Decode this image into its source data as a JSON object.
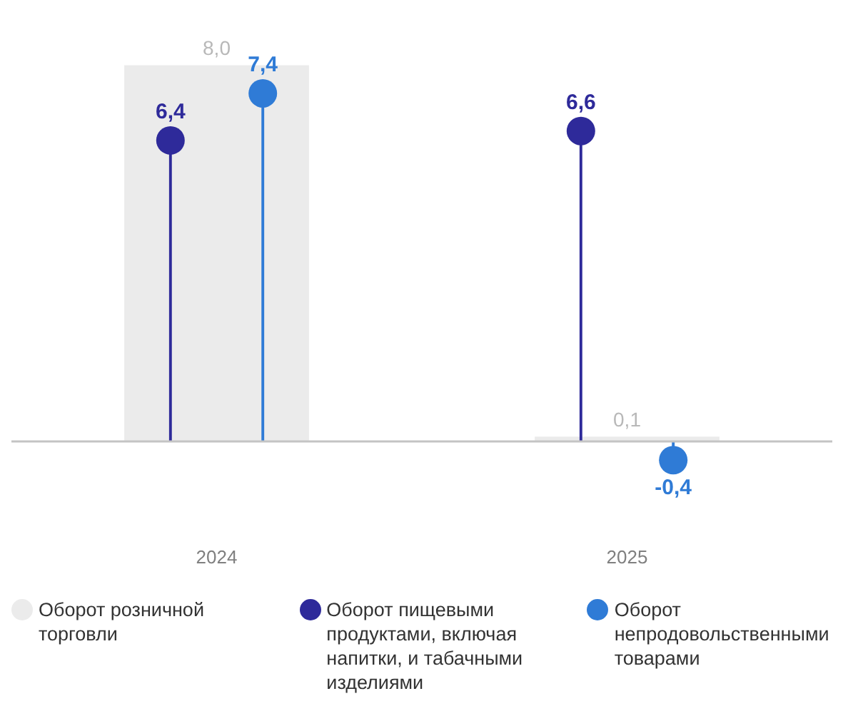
{
  "chart_data": {
    "type": "bar",
    "categories": [
      "2024",
      "2025"
    ],
    "legend": "bottom",
    "series": [
      {
        "name": "Оборот розничной торговли",
        "color": "#ebebeb",
        "values": [
          8.0,
          0.1
        ],
        "value_labels": [
          "8,0",
          "0,1"
        ]
      },
      {
        "name": "Оборот пищевыми продуктами, включая напитки, и табачными изделиями",
        "type": "lollipop",
        "color": "#2e2a9a",
        "values": [
          6.4,
          6.6
        ],
        "value_labels": [
          "6,4",
          "6,6"
        ]
      },
      {
        "name": "Оборот непродовольственными товарами",
        "type": "lollipop",
        "color": "#2f7bd6",
        "values": [
          7.4,
          -0.4
        ],
        "value_labels": [
          "7,4",
          "-0,4"
        ]
      }
    ]
  }
}
